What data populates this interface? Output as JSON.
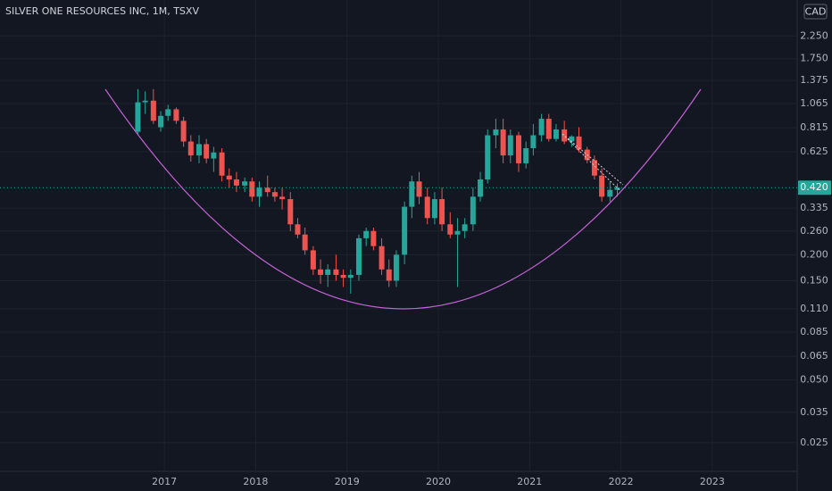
{
  "chart_data": {
    "type": "candlestick",
    "title": "SILVER ONE RESOURCES INC, 1M, TSXV",
    "currency": "CAD",
    "log_scale": true,
    "grid": true,
    "up_color": "#26a69a",
    "down_color": "#ef5350",
    "x": [
      2016.71,
      2016.79,
      2016.88,
      2016.96,
      2017.04,
      2017.13,
      2017.21,
      2017.29,
      2017.38,
      2017.46,
      2017.54,
      2017.63,
      2017.71,
      2017.79,
      2017.88,
      2017.96,
      2018.04,
      2018.13,
      2018.21,
      2018.29,
      2018.38,
      2018.46,
      2018.54,
      2018.63,
      2018.71,
      2018.79,
      2018.88,
      2018.96,
      2019.04,
      2019.13,
      2019.21,
      2019.29,
      2019.38,
      2019.46,
      2019.54,
      2019.63,
      2019.71,
      2019.79,
      2019.88,
      2019.96,
      2020.04,
      2020.13,
      2020.21,
      2020.29,
      2020.38,
      2020.46,
      2020.54,
      2020.63,
      2020.71,
      2020.79,
      2020.88,
      2020.96,
      2021.04,
      2021.13,
      2021.21,
      2021.29,
      2021.38,
      2021.46,
      2021.54,
      2021.63,
      2021.71,
      2021.79,
      2021.88,
      2021.96
    ],
    "open": [
      0.78,
      1.08,
      1.1,
      0.82,
      0.93,
      1.0,
      0.88,
      0.7,
      0.6,
      0.68,
      0.58,
      0.62,
      0.48,
      0.46,
      0.43,
      0.45,
      0.38,
      0.42,
      0.4,
      0.38,
      0.37,
      0.28,
      0.25,
      0.21,
      0.17,
      0.16,
      0.17,
      0.16,
      0.155,
      0.16,
      0.24,
      0.26,
      0.22,
      0.17,
      0.15,
      0.2,
      0.34,
      0.45,
      0.38,
      0.3,
      0.37,
      0.28,
      0.25,
      0.26,
      0.28,
      0.38,
      0.46,
      0.75,
      0.8,
      0.6,
      0.75,
      0.55,
      0.65,
      0.75,
      0.9,
      0.72,
      0.8,
      0.7,
      0.74,
      0.64,
      0.57,
      0.48,
      0.38,
      0.41
    ],
    "high": [
      1.25,
      1.22,
      1.25,
      0.98,
      1.05,
      1.02,
      0.92,
      0.75,
      0.75,
      0.72,
      0.66,
      0.65,
      0.52,
      0.5,
      0.47,
      0.47,
      0.45,
      0.48,
      0.42,
      0.42,
      0.4,
      0.3,
      0.27,
      0.22,
      0.19,
      0.18,
      0.2,
      0.17,
      0.17,
      0.25,
      0.27,
      0.27,
      0.24,
      0.19,
      0.21,
      0.36,
      0.48,
      0.5,
      0.42,
      0.4,
      0.42,
      0.32,
      0.3,
      0.3,
      0.42,
      0.5,
      0.8,
      0.9,
      0.9,
      0.8,
      0.78,
      0.7,
      0.85,
      0.95,
      0.95,
      0.85,
      0.88,
      0.75,
      0.82,
      0.66,
      0.6,
      0.52,
      0.45,
      0.44
    ],
    "low": [
      0.75,
      0.95,
      0.85,
      0.78,
      0.88,
      0.85,
      0.66,
      0.56,
      0.55,
      0.55,
      0.5,
      0.45,
      0.42,
      0.4,
      0.4,
      0.36,
      0.34,
      0.38,
      0.36,
      0.33,
      0.26,
      0.24,
      0.2,
      0.16,
      0.145,
      0.14,
      0.15,
      0.14,
      0.13,
      0.15,
      0.22,
      0.21,
      0.16,
      0.14,
      0.14,
      0.18,
      0.3,
      0.35,
      0.28,
      0.28,
      0.26,
      0.24,
      0.14,
      0.24,
      0.26,
      0.36,
      0.44,
      0.65,
      0.55,
      0.55,
      0.5,
      0.52,
      0.6,
      0.7,
      0.7,
      0.7,
      0.68,
      0.66,
      0.62,
      0.55,
      0.46,
      0.36,
      0.36,
      0.38
    ],
    "close": [
      1.08,
      1.1,
      0.88,
      0.93,
      1.0,
      0.88,
      0.7,
      0.6,
      0.68,
      0.58,
      0.62,
      0.48,
      0.46,
      0.43,
      0.45,
      0.38,
      0.42,
      0.4,
      0.38,
      0.37,
      0.28,
      0.25,
      0.21,
      0.17,
      0.16,
      0.17,
      0.16,
      0.155,
      0.16,
      0.24,
      0.26,
      0.22,
      0.17,
      0.15,
      0.2,
      0.34,
      0.45,
      0.38,
      0.3,
      0.37,
      0.28,
      0.25,
      0.26,
      0.28,
      0.38,
      0.46,
      0.75,
      0.8,
      0.6,
      0.75,
      0.55,
      0.65,
      0.75,
      0.9,
      0.72,
      0.8,
      0.7,
      0.74,
      0.64,
      0.57,
      0.48,
      0.38,
      0.41,
      0.42
    ],
    "last_price": {
      "value": 0.42,
      "label": "0.420"
    },
    "xlim": [
      2015.2,
      2023.93
    ],
    "xticks": [
      2017,
      2018,
      2019,
      2020,
      2021,
      2022,
      2023
    ],
    "ylim": [
      0.0182,
      3.35
    ],
    "yticks": [
      {
        "value": 2.25,
        "label": "2.250"
      },
      {
        "value": 1.75,
        "label": "1.750"
      },
      {
        "value": 1.375,
        "label": "1.375"
      },
      {
        "value": 1.065,
        "label": "1.065"
      },
      {
        "value": 0.815,
        "label": "0.815"
      },
      {
        "value": 0.625,
        "label": "0.625"
      },
      {
        "value": 0.335,
        "label": "0.335"
      },
      {
        "value": 0.26,
        "label": "0.260"
      },
      {
        "value": 0.2,
        "label": "0.200"
      },
      {
        "value": 0.15,
        "label": "0.150"
      },
      {
        "value": 0.11,
        "label": "0.110"
      },
      {
        "value": 0.085,
        "label": "0.085"
      },
      {
        "value": 0.065,
        "label": "0.065"
      },
      {
        "value": 0.05,
        "label": "0.050"
      },
      {
        "value": 0.035,
        "label": "0.035"
      },
      {
        "value": 0.025,
        "label": "0.025"
      }
    ]
  }
}
